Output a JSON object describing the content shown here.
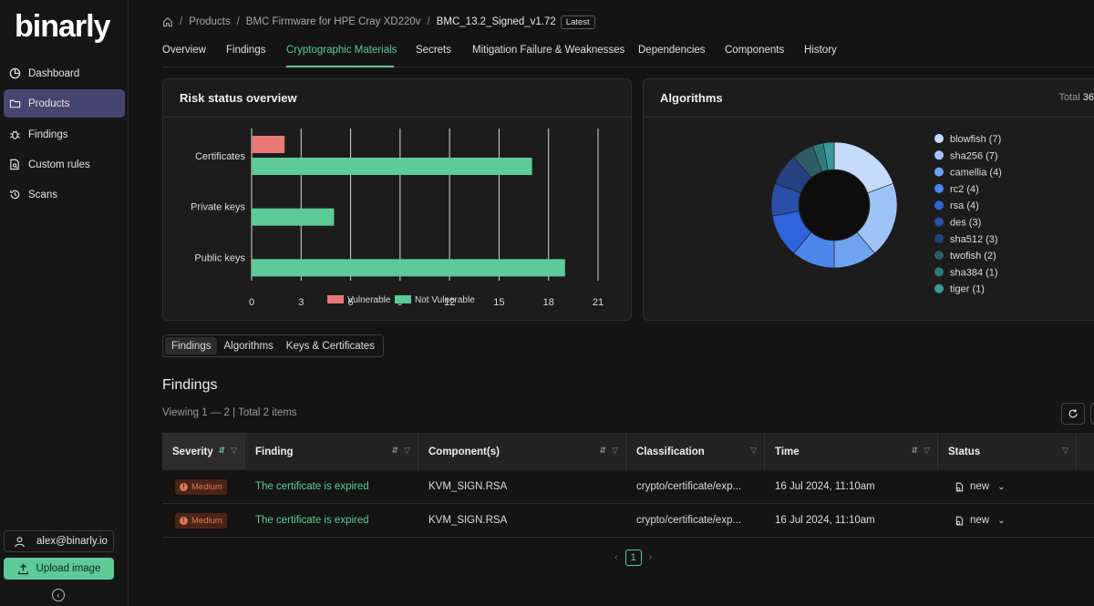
{
  "sidebar": {
    "logo": "binarly",
    "items": [
      {
        "label": "Dashboard",
        "icon": "pie-chart-icon"
      },
      {
        "label": "Products",
        "icon": "folder-icon"
      },
      {
        "label": "Findings",
        "icon": "bug-icon"
      },
      {
        "label": "Custom rules",
        "icon": "document-search-icon"
      },
      {
        "label": "Scans",
        "icon": "history-icon"
      }
    ],
    "active_item": "Products",
    "user_email": "alex@binarly.io",
    "upload_label": "Upload image"
  },
  "breadcrumb": {
    "items": [
      "Products",
      "BMC Firmware for HPE Cray XD220v"
    ],
    "current": "BMC_13.2_Signed_v1.72",
    "badge": "Latest"
  },
  "tabs": [
    {
      "label": "Overview"
    },
    {
      "label": "Findings"
    },
    {
      "label": "Cryptographic Materials",
      "active": true
    },
    {
      "label": "Secrets"
    },
    {
      "label": "Mitigation Failure & Weaknesses"
    },
    {
      "label": "Dependencies"
    },
    {
      "label": "Components"
    },
    {
      "label": "History"
    }
  ],
  "risk_card": {
    "title": "Risk status overview"
  },
  "algorithms_card": {
    "title": "Algorithms",
    "total_label": "Total",
    "total_value": "36"
  },
  "chart_data": [
    {
      "type": "bar",
      "orientation": "horizontal",
      "title": "Risk status overview",
      "categories": [
        "Certificates",
        "Private keys",
        "Public keys"
      ],
      "series": [
        {
          "name": "Vulnerable",
          "color": "#e77a78",
          "values": [
            2,
            0,
            0
          ]
        },
        {
          "name": "Not Vulnerable",
          "color": "#5dca98",
          "values": [
            17,
            5,
            19
          ]
        }
      ],
      "xlim": [
        0,
        21
      ],
      "xticks": [
        "0",
        "3",
        "6",
        "9",
        "12",
        "15",
        "18",
        "21"
      ],
      "legend_position": "bottom",
      "grid": true
    },
    {
      "type": "pie",
      "style": "donut",
      "title": "Algorithms",
      "slices": [
        {
          "label": "blowfish",
          "value": 7,
          "color": "#c4dcfa"
        },
        {
          "label": "sha256",
          "value": 7,
          "color": "#9ec4f6"
        },
        {
          "label": "camellia",
          "value": 4,
          "color": "#6fa3ef"
        },
        {
          "label": "rc2",
          "value": 4,
          "color": "#4d86ea"
        },
        {
          "label": "rsa",
          "value": 4,
          "color": "#2f64dc"
        },
        {
          "label": "des",
          "value": 3,
          "color": "#2a4fa6"
        },
        {
          "label": "sha512",
          "value": 3,
          "color": "#27407f"
        },
        {
          "label": "twofish",
          "value": 2,
          "color": "#2d5c66"
        },
        {
          "label": "sha384",
          "value": 1,
          "color": "#2f7a7c"
        },
        {
          "label": "tiger",
          "value": 1,
          "color": "#3a9a9b"
        }
      ],
      "legend_position": "right"
    }
  ],
  "segmented": {
    "items": [
      "Findings",
      "Algorithms",
      "Keys & Certificates"
    ],
    "active": "Findings"
  },
  "findings": {
    "title": "Findings",
    "viewing": "Viewing 1 — 2 | Total 2 items",
    "columns": [
      "Severity",
      "Finding",
      "Component(s)",
      "Classification",
      "Time",
      "Status"
    ],
    "rows": [
      {
        "severity": "Medium",
        "finding": "The certificate is expired",
        "component": "KVM_SIGN.RSA",
        "classification": "crypto/certificate/exp...",
        "time": "16 Jul 2024, 11:10am",
        "status": "new"
      },
      {
        "severity": "Medium",
        "finding": "The certificate is expired",
        "component": "KVM_SIGN.RSA",
        "classification": "crypto/certificate/exp...",
        "time": "16 Jul 2024, 11:10am",
        "status": "new"
      }
    ],
    "page": "1"
  }
}
